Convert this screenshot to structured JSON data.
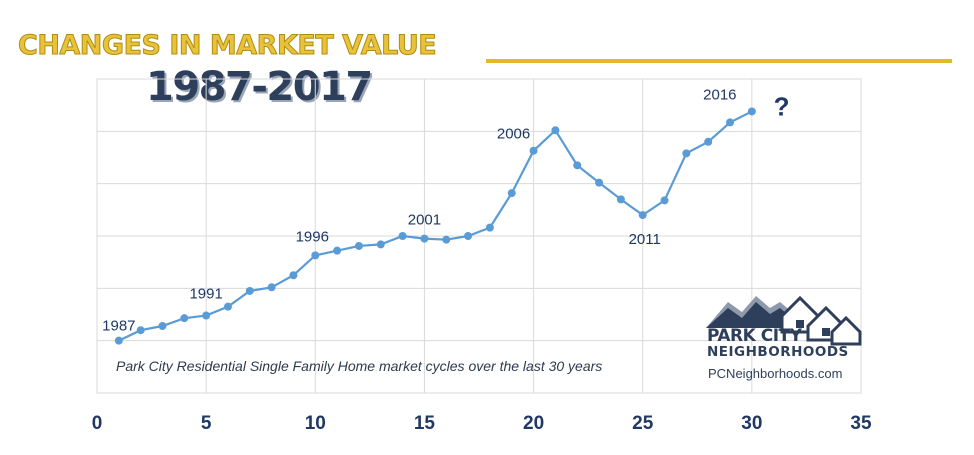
{
  "header": {
    "title": "CHANGES IN MARKET VALUE",
    "subtitle": "1987-2017"
  },
  "colors": {
    "title_gold": "#e8c33a",
    "subtitle_navy": "#2e3f5c",
    "series_blue": "#5b9bd5",
    "label_navy": "#1f3864",
    "grid": "#d9d9d9"
  },
  "chart_data": {
    "type": "line",
    "title": "",
    "xlabel": "",
    "ylabel": "",
    "xlim": [
      0,
      35
    ],
    "ylim": [
      0,
      6
    ],
    "x_ticks": [
      0,
      5,
      10,
      15,
      20,
      25,
      30,
      35
    ],
    "y_ticks_labeled": false,
    "grid": true,
    "series": [
      {
        "x": [
          1,
          2,
          3,
          4,
          5,
          6,
          7,
          8,
          9,
          10,
          11,
          12,
          13,
          14,
          15,
          16,
          17,
          18,
          19,
          20,
          21,
          22,
          23,
          24,
          25,
          26,
          27,
          28,
          29,
          30
        ],
        "y": [
          1.0,
          1.2,
          1.28,
          1.43,
          1.48,
          1.65,
          1.95,
          2.02,
          2.25,
          2.63,
          2.72,
          2.81,
          2.84,
          3.0,
          2.95,
          2.93,
          3.0,
          3.16,
          3.82,
          4.63,
          5.02,
          4.35,
          4.02,
          3.7,
          3.4,
          3.68,
          4.58,
          4.8,
          5.17,
          5.38
        ]
      }
    ],
    "annotations": [
      {
        "text": "1987",
        "x": 1
      },
      {
        "text": "1991",
        "x": 5
      },
      {
        "text": "1996",
        "x": 10
      },
      {
        "text": "2001",
        "x": 15
      },
      {
        "text": "2006",
        "x": 20
      },
      {
        "text": "2011",
        "x": 25
      },
      {
        "text": "2016",
        "x": 30
      },
      {
        "text": "?",
        "x": 32
      }
    ],
    "caption": "Park City Residential Single Family Home market cycles over the last 30 years"
  },
  "logo": {
    "name_line1": "PARK CITY",
    "name_line2": "NEIGHBORHOODS",
    "url": "PCNeighborhoods.com"
  }
}
